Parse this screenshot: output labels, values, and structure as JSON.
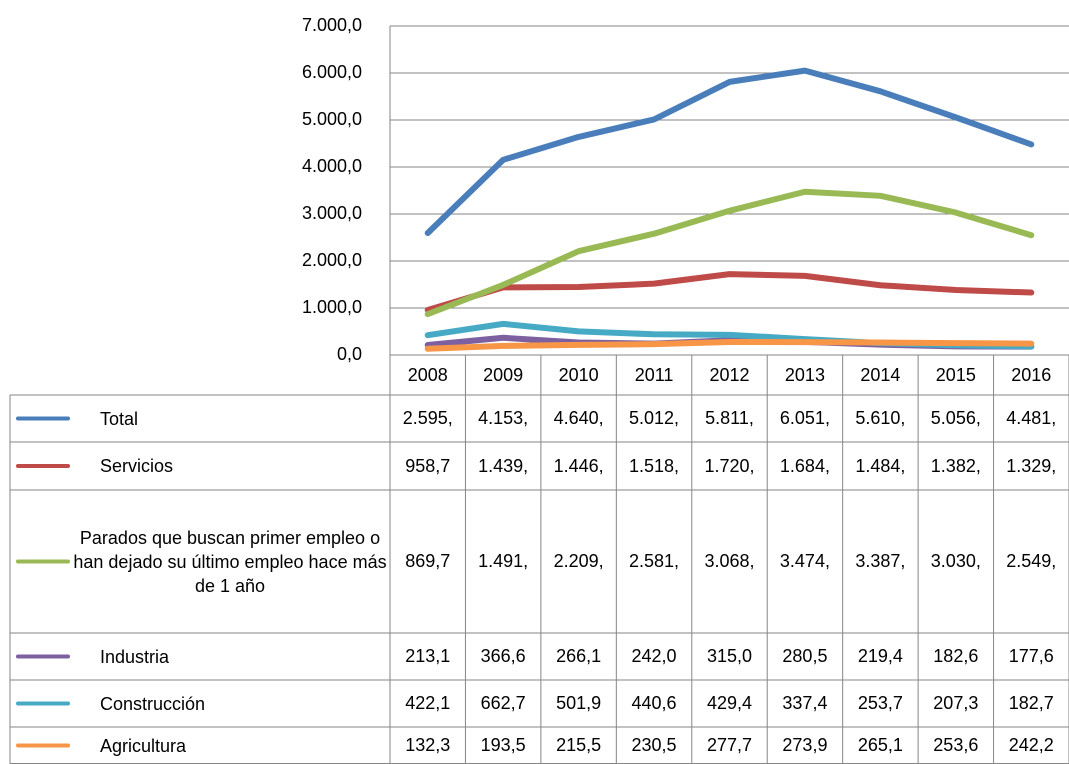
{
  "chart_data": {
    "type": "line",
    "categories": [
      "2008",
      "2009",
      "2010",
      "2011",
      "2012",
      "2013",
      "2014",
      "2015",
      "2016"
    ],
    "ylim": [
      0,
      7000
    ],
    "yticks": [
      {
        "value": 0,
        "label": "0,0"
      },
      {
        "value": 1000,
        "label": "1.000,0"
      },
      {
        "value": 2000,
        "label": "2.000,0"
      },
      {
        "value": 3000,
        "label": "3.000,0"
      },
      {
        "value": 4000,
        "label": "4.000,0"
      },
      {
        "value": 5000,
        "label": "5.000,0"
      },
      {
        "value": 6000,
        "label": "6.000,0"
      },
      {
        "value": 7000,
        "label": "7.000,0"
      }
    ],
    "grid": true,
    "series": [
      {
        "name": "Total",
        "color": "#4a7ebb",
        "values": [
          2595,
          4153,
          4640,
          5012,
          5811,
          6051,
          5610,
          5056,
          4481
        ],
        "value_labels": [
          "2.595,",
          "4.153,",
          "4.640,",
          "5.012,",
          "5.811,",
          "6.051,",
          "5.610,",
          "5.056,",
          "4.481,"
        ]
      },
      {
        "name": "Servicios",
        "color": "#be4b48",
        "values": [
          958.7,
          1439,
          1446,
          1518,
          1720,
          1684,
          1484,
          1382,
          1329
        ],
        "value_labels": [
          "958,7",
          "1.439,",
          "1.446,",
          "1.518,",
          "1.720,",
          "1.684,",
          "1.484,",
          "1.382,",
          "1.329,"
        ]
      },
      {
        "name": "Parados que buscan primer empleo o han dejado su último empleo hace más de 1 año",
        "color": "#98b954",
        "values": [
          869.7,
          1491,
          2209,
          2581,
          3068,
          3474,
          3387,
          3030,
          2549
        ],
        "value_labels": [
          "869,7",
          "1.491,",
          "2.209,",
          "2.581,",
          "3.068,",
          "3.474,",
          "3.387,",
          "3.030,",
          "2.549,"
        ]
      },
      {
        "name": "Industria",
        "color": "#7d60a0",
        "values": [
          213.1,
          366.6,
          266.1,
          242.0,
          315.0,
          280.5,
          219.4,
          182.6,
          177.6
        ],
        "value_labels": [
          "213,1",
          "366,6",
          "266,1",
          "242,0",
          "315,0",
          "280,5",
          "219,4",
          "182,6",
          "177,6"
        ]
      },
      {
        "name": "Construcción",
        "color": "#46aac5",
        "values": [
          422.1,
          662.7,
          501.9,
          440.6,
          429.4,
          337.4,
          253.7,
          207.3,
          182.7
        ],
        "value_labels": [
          "422,1",
          "662,7",
          "501,9",
          "440,6",
          "429,4",
          "337,4",
          "253,7",
          "207,3",
          "182,7"
        ]
      },
      {
        "name": "Agricultura",
        "color": "#f79646",
        "values": [
          132.3,
          193.5,
          215.5,
          230.5,
          277.7,
          273.9,
          265.1,
          253.6,
          242.2
        ],
        "value_labels": [
          "132,3",
          "193,5",
          "215,5",
          "230,5",
          "277,7",
          "273,9",
          "265,1",
          "253,6",
          "242,2"
        ]
      }
    ]
  }
}
